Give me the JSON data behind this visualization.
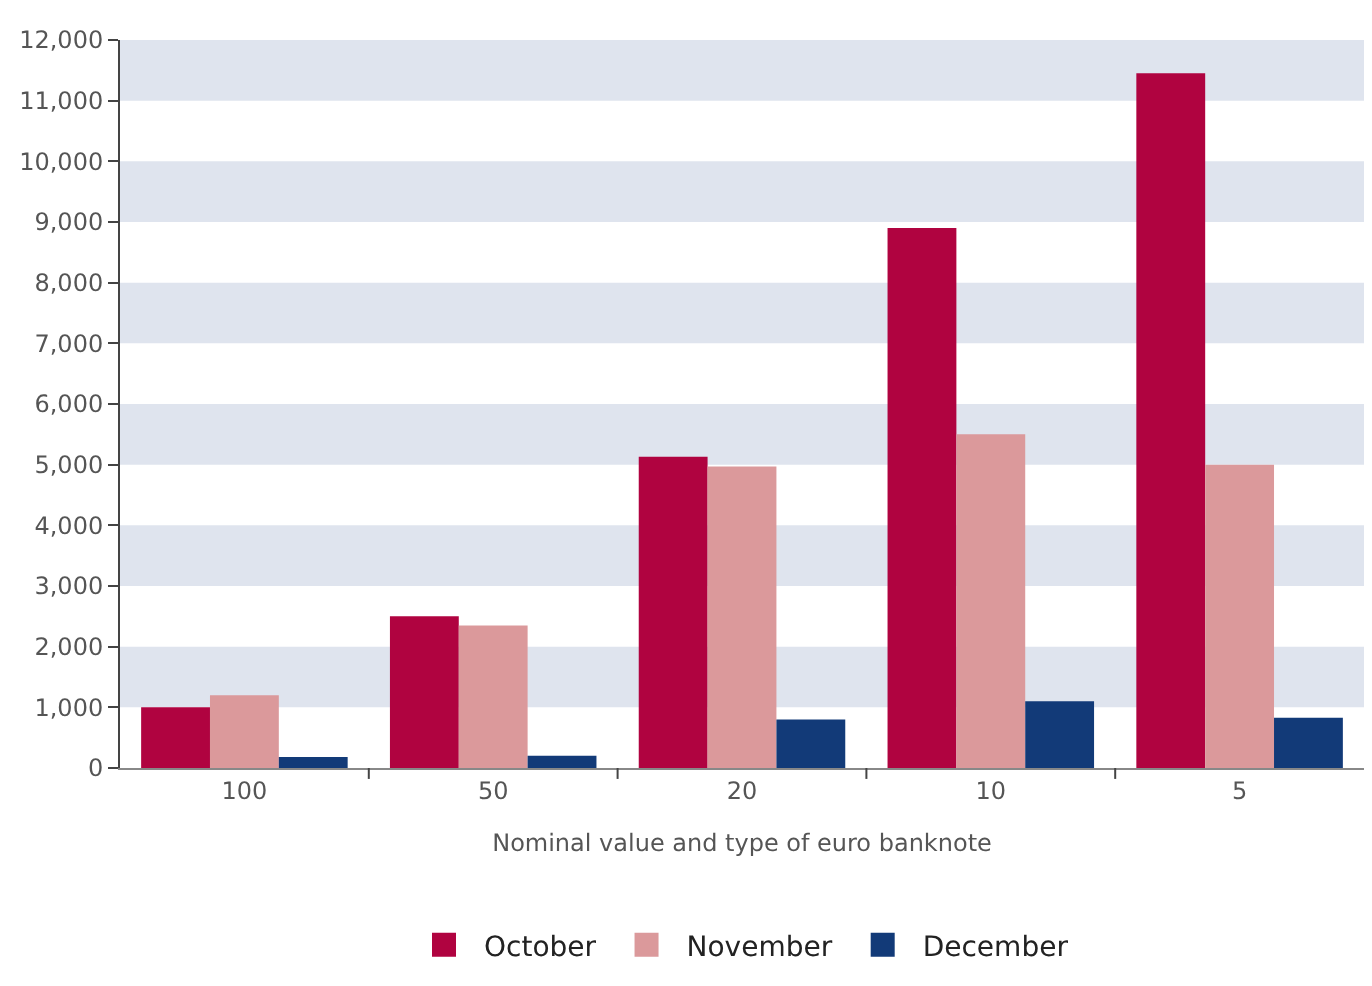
{
  "chart_data": {
    "type": "bar",
    "xlabel": "Nominal value and type of euro banknote",
    "categories": [
      "100",
      "50",
      "20",
      "10",
      "5"
    ],
    "series": [
      {
        "name": "October",
        "color": "#b00340",
        "values": [
          1000,
          2500,
          5130,
          8900,
          11450
        ]
      },
      {
        "name": "November",
        "color": "#db999b",
        "values": [
          1200,
          2350,
          4970,
          5500,
          5000
        ]
      },
      {
        "name": "December",
        "color": "#123a78",
        "values": [
          180,
          200,
          800,
          1100,
          830
        ]
      }
    ],
    "ylim": [
      0,
      12000
    ],
    "yticks": [
      {
        "value": 0,
        "label": "0"
      },
      {
        "value": 1000,
        "label": "1,000"
      },
      {
        "value": 2000,
        "label": "2,000"
      },
      {
        "value": 3000,
        "label": "3,000"
      },
      {
        "value": 4000,
        "label": "4,000"
      },
      {
        "value": 5000,
        "label": "5,000"
      },
      {
        "value": 6000,
        "label": "6,000"
      },
      {
        "value": 7000,
        "label": "7,000"
      },
      {
        "value": 8000,
        "label": "8,000"
      },
      {
        "value": 9000,
        "label": "9,000"
      },
      {
        "value": 10000,
        "label": "10,000"
      },
      {
        "value": 11000,
        "label": "11,000"
      },
      {
        "value": 12000,
        "label": "12,000"
      }
    ],
    "bands": [
      {
        "axis": "y",
        "from": 1000,
        "to": 2000,
        "color": "#dfe4ee"
      },
      {
        "axis": "y",
        "from": 3000,
        "to": 4000,
        "color": "#dfe4ee"
      },
      {
        "axis": "y",
        "from": 5000,
        "to": 6000,
        "color": "#dfe4ee"
      },
      {
        "axis": "y",
        "from": 7000,
        "to": 8000,
        "color": "#dfe4ee"
      },
      {
        "axis": "y",
        "from": 9000,
        "to": 10000,
        "color": "#dfe4ee"
      },
      {
        "axis": "y",
        "from": 11000,
        "to": 12000,
        "color": "#dfe4ee"
      }
    ],
    "legend": "bottom"
  }
}
